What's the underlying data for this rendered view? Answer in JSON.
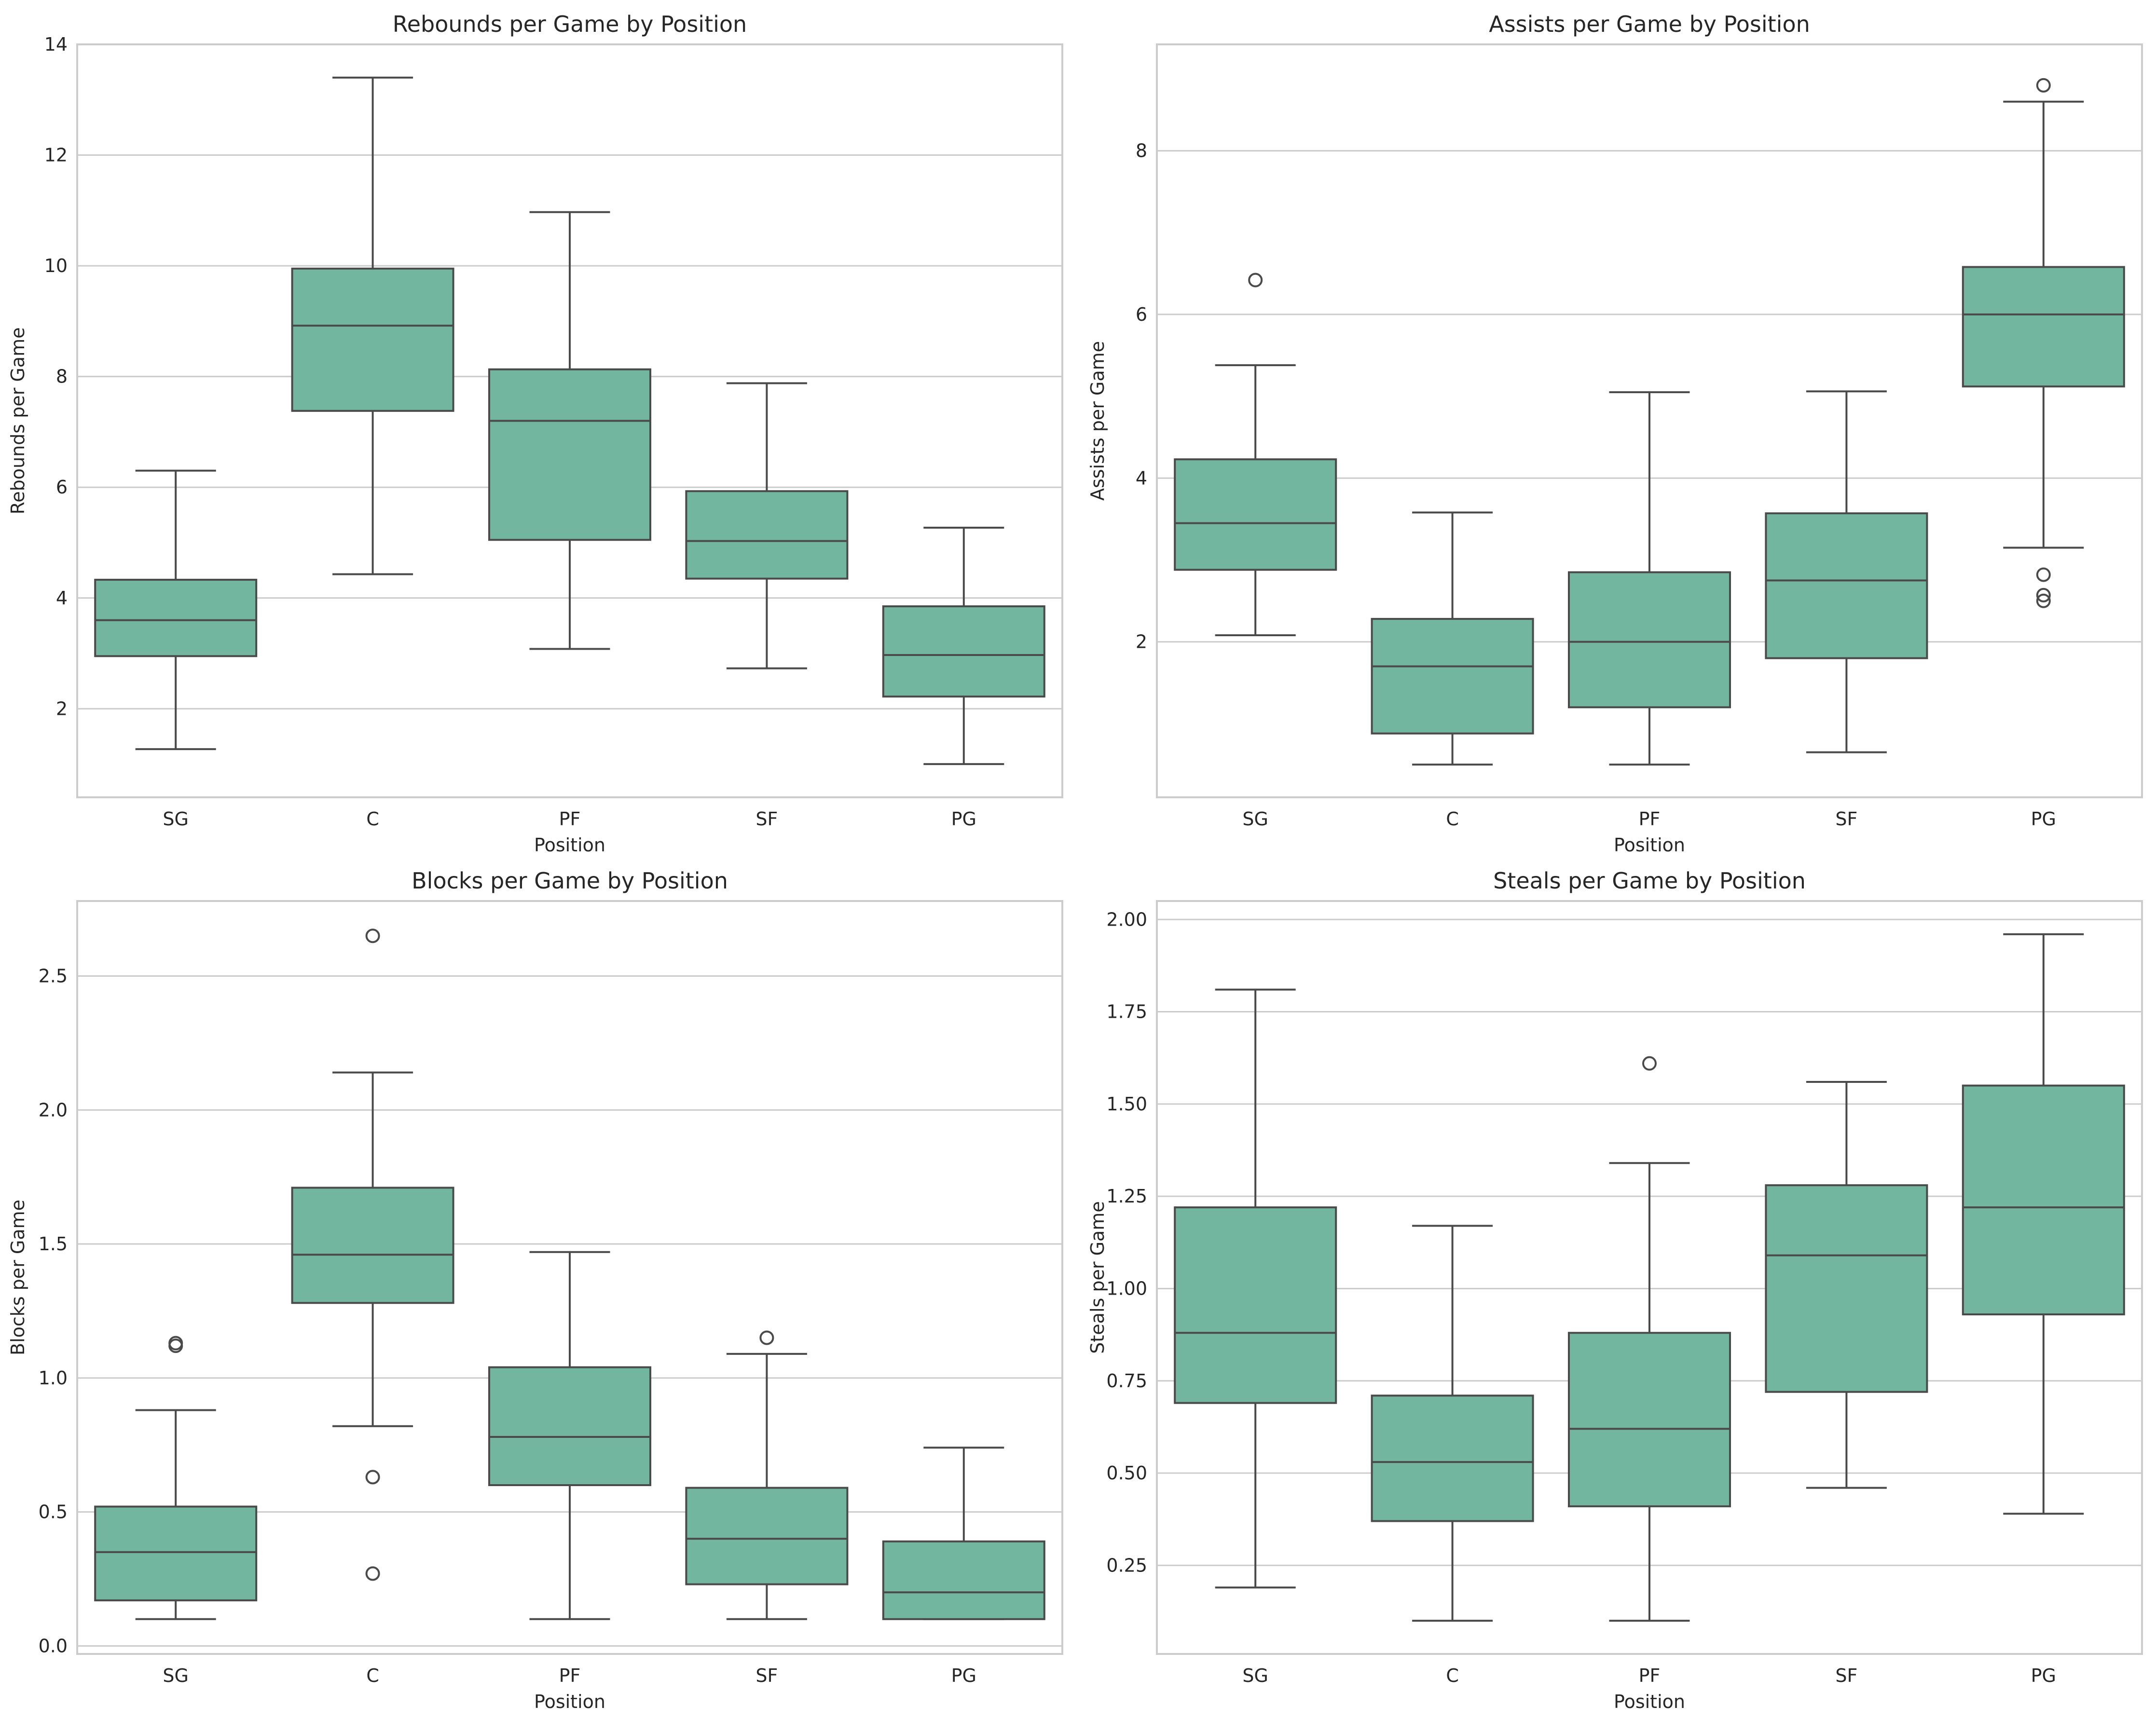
{
  "chart_data": [
    {
      "type": "box",
      "title": "Rebounds per Game by Position",
      "xlabel": "Position",
      "ylabel": "Rebounds per Game",
      "categories": [
        "SG",
        "C",
        "PF",
        "SF",
        "PG"
      ],
      "ylim": [
        0.4,
        14.0
      ],
      "yticks": [
        2,
        4,
        6,
        8,
        10,
        12,
        14
      ],
      "ytick_labels": [
        "2",
        "4",
        "6",
        "8",
        "10",
        "12",
        "14"
      ],
      "grid": true,
      "boxes": [
        {
          "category": "SG",
          "whisker_low": 1.27,
          "q1": 2.95,
          "median": 3.6,
          "q3": 4.33,
          "whisker_high": 6.3,
          "outliers": []
        },
        {
          "category": "C",
          "whisker_low": 4.43,
          "q1": 7.38,
          "median": 8.92,
          "q3": 9.95,
          "whisker_high": 13.4,
          "outliers": []
        },
        {
          "category": "PF",
          "whisker_low": 3.08,
          "q1": 5.05,
          "median": 7.2,
          "q3": 8.13,
          "whisker_high": 10.97,
          "outliers": []
        },
        {
          "category": "SF",
          "whisker_low": 2.73,
          "q1": 4.35,
          "median": 5.03,
          "q3": 5.93,
          "whisker_high": 7.88,
          "outliers": []
        },
        {
          "category": "PG",
          "whisker_low": 1.0,
          "q1": 2.22,
          "median": 2.97,
          "q3": 3.85,
          "whisker_high": 5.27,
          "outliers": []
        }
      ]
    },
    {
      "type": "box",
      "title": "Assists per Game by Position",
      "xlabel": "Position",
      "ylabel": "Assists per Game",
      "categories": [
        "SG",
        "C",
        "PF",
        "SF",
        "PG"
      ],
      "ylim": [
        0.1,
        9.3
      ],
      "yticks": [
        2,
        4,
        6,
        8
      ],
      "ytick_labels": [
        "2",
        "4",
        "6",
        "8"
      ],
      "grid": true,
      "boxes": [
        {
          "category": "SG",
          "whisker_low": 2.08,
          "q1": 2.88,
          "median": 3.45,
          "q3": 4.23,
          "whisker_high": 5.38,
          "outliers": [
            6.42
          ]
        },
        {
          "category": "C",
          "whisker_low": 0.5,
          "q1": 0.88,
          "median": 1.7,
          "q3": 2.28,
          "whisker_high": 3.58,
          "outliers": []
        },
        {
          "category": "PF",
          "whisker_low": 0.5,
          "q1": 1.2,
          "median": 2.0,
          "q3": 2.85,
          "whisker_high": 5.05,
          "outliers": []
        },
        {
          "category": "SF",
          "whisker_low": 0.65,
          "q1": 1.8,
          "median": 2.75,
          "q3": 3.57,
          "whisker_high": 5.06,
          "outliers": []
        },
        {
          "category": "PG",
          "whisker_low": 3.15,
          "q1": 5.12,
          "median": 6.0,
          "q3": 6.58,
          "whisker_high": 8.6,
          "outliers": [
            8.8,
            2.82,
            2.57,
            2.5
          ]
        }
      ]
    },
    {
      "type": "box",
      "title": "Blocks per Game by Position",
      "xlabel": "Position",
      "ylabel": "Blocks per Game",
      "categories": [
        "SG",
        "C",
        "PF",
        "SF",
        "PG"
      ],
      "ylim": [
        -0.03,
        2.78
      ],
      "yticks": [
        0.0,
        0.5,
        1.0,
        1.5,
        2.0,
        2.5
      ],
      "ytick_labels": [
        "0.0",
        "0.5",
        "1.0",
        "1.5",
        "2.0",
        "2.5"
      ],
      "grid": true,
      "boxes": [
        {
          "category": "SG",
          "whisker_low": 0.1,
          "q1": 0.17,
          "median": 0.35,
          "q3": 0.52,
          "whisker_high": 0.88,
          "outliers": [
            1.13,
            1.12
          ]
        },
        {
          "category": "C",
          "whisker_low": 0.82,
          "q1": 1.28,
          "median": 1.46,
          "q3": 1.71,
          "whisker_high": 2.14,
          "outliers": [
            2.65,
            0.63,
            0.27
          ]
        },
        {
          "category": "PF",
          "whisker_low": 0.1,
          "q1": 0.6,
          "median": 0.78,
          "q3": 1.04,
          "whisker_high": 1.47,
          "outliers": []
        },
        {
          "category": "SF",
          "whisker_low": 0.1,
          "q1": 0.23,
          "median": 0.4,
          "q3": 0.59,
          "whisker_high": 1.09,
          "outliers": [
            1.15
          ]
        },
        {
          "category": "PG",
          "whisker_low": 0.1,
          "q1": 0.1,
          "median": 0.2,
          "q3": 0.39,
          "whisker_high": 0.74,
          "outliers": []
        }
      ]
    },
    {
      "type": "box",
      "title": "Steals per Game by Position",
      "xlabel": "Position",
      "ylabel": "Steals per Game",
      "categories": [
        "SG",
        "C",
        "PF",
        "SF",
        "PG"
      ],
      "ylim": [
        0.01,
        2.05
      ],
      "yticks": [
        0.25,
        0.5,
        0.75,
        1.0,
        1.25,
        1.5,
        1.75,
        2.0
      ],
      "ytick_labels": [
        "0.25",
        "0.50",
        "0.75",
        "1.00",
        "1.25",
        "1.50",
        "1.75",
        "2.00"
      ],
      "grid": true,
      "boxes": [
        {
          "category": "SG",
          "whisker_low": 0.19,
          "q1": 0.69,
          "median": 0.88,
          "q3": 1.22,
          "whisker_high": 1.81,
          "outliers": []
        },
        {
          "category": "C",
          "whisker_low": 0.1,
          "q1": 0.37,
          "median": 0.53,
          "q3": 0.71,
          "whisker_high": 1.17,
          "outliers": []
        },
        {
          "category": "PF",
          "whisker_low": 0.1,
          "q1": 0.41,
          "median": 0.62,
          "q3": 0.88,
          "whisker_high": 1.34,
          "outliers": [
            1.61
          ]
        },
        {
          "category": "SF",
          "whisker_low": 0.46,
          "q1": 0.72,
          "median": 1.09,
          "q3": 1.28,
          "whisker_high": 1.56,
          "outliers": []
        },
        {
          "category": "PG",
          "whisker_low": 0.39,
          "q1": 0.93,
          "median": 1.22,
          "q3": 1.55,
          "whisker_high": 1.96,
          "outliers": []
        }
      ]
    }
  ]
}
